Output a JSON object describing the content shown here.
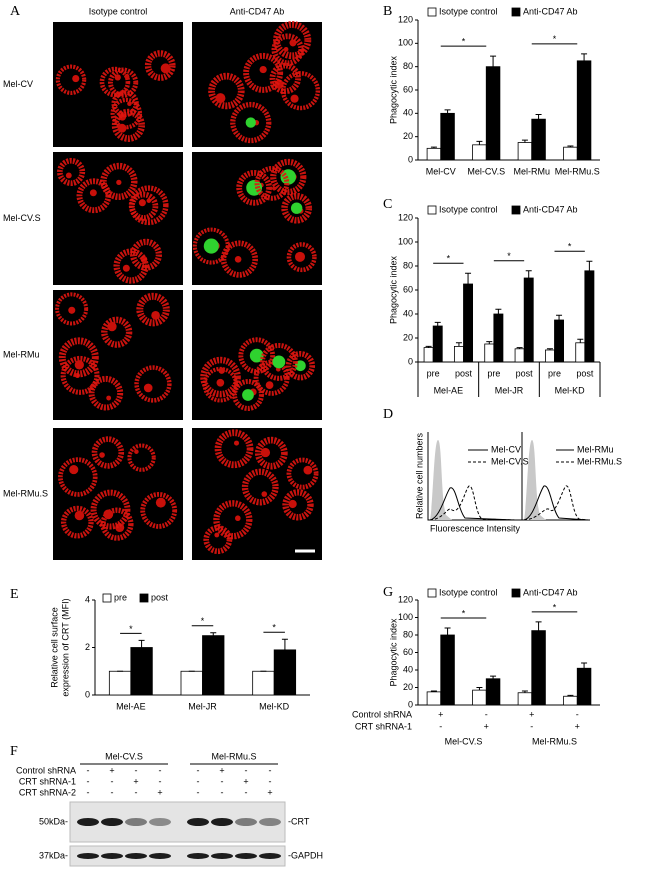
{
  "panel_labels": [
    "A",
    "B",
    "C",
    "D",
    "E",
    "F",
    "G"
  ],
  "panel_a": {
    "columns": [
      "Isotype control",
      "Anti-CD47 Ab"
    ],
    "rows": [
      "Mel-CV",
      "Mel-CV.S",
      "Mel-RMu",
      "Mel-RMu.S"
    ]
  },
  "chart_data": [
    {
      "type": "bar",
      "y_label": "Phagocytic index",
      "categories": [
        "Mel-CV",
        "Mel-CV.S",
        "Mel-RMu",
        "Mel-RMu.S"
      ],
      "series": [
        {
          "name": "Isotype control",
          "color": "#ffffff",
          "values": [
            10,
            13,
            15,
            11
          ],
          "errors": [
            1,
            3,
            2,
            1
          ]
        },
        {
          "name": "Anti-CD47 Ab",
          "color": "#000000",
          "values": [
            40,
            80,
            35,
            85
          ],
          "errors": [
            3,
            9,
            4,
            6
          ]
        }
      ],
      "ylim": [
        0,
        120
      ],
      "yticks": [
        0,
        20,
        40,
        60,
        80,
        100,
        120
      ],
      "significance": [
        "*",
        "*"
      ]
    },
    {
      "type": "bar",
      "y_label": "Phagocytic index",
      "categories": [
        "pre",
        "post",
        "pre",
        "post",
        "pre",
        "post"
      ],
      "groups": [
        "Mel-AE",
        "Mel-JR",
        "Mel-KD"
      ],
      "series": [
        {
          "name": "Isotype control",
          "color": "#ffffff",
          "values": [
            12,
            13,
            15,
            11,
            10,
            16
          ],
          "errors": [
            1,
            3,
            2,
            1,
            1,
            3
          ]
        },
        {
          "name": "Anti-CD47 Ab",
          "color": "#000000",
          "values": [
            30,
            65,
            40,
            70,
            35,
            76
          ],
          "errors": [
            3,
            9,
            4,
            6,
            4,
            8
          ]
        }
      ],
      "ylim": [
        0,
        120
      ],
      "yticks": [
        0,
        20,
        40,
        60,
        80,
        100,
        120
      ],
      "significance": [
        "*",
        "*",
        "*"
      ]
    },
    {
      "type": "bar",
      "y_label": [
        "Relative cell surface",
        "expression of CRT (MFI)"
      ],
      "categories": [
        "Mel-AE",
        "Mel-JR",
        "Mel-KD"
      ],
      "series": [
        {
          "name": "pre",
          "color": "#ffffff",
          "values": [
            1,
            1,
            1
          ],
          "errors": [
            0,
            0,
            0
          ]
        },
        {
          "name": "post",
          "color": "#000000",
          "values": [
            2,
            2.5,
            1.9
          ],
          "errors": [
            0.3,
            0.12,
            0.45
          ]
        }
      ],
      "ylim": [
        0,
        4
      ],
      "yticks": [
        0,
        2,
        4
      ],
      "significance": [
        "*",
        "*",
        "*"
      ]
    },
    {
      "type": "bar",
      "y_label": "Phagocytic index",
      "categories": [
        null,
        null,
        null,
        null
      ],
      "conditions": [
        {
          "name": "Control shRNA",
          "marks": [
            "+",
            "-",
            "+",
            "-"
          ]
        },
        {
          "name": "CRT shRNA-1",
          "marks": [
            "-",
            "+",
            "-",
            "+"
          ]
        }
      ],
      "groups": [
        "Mel-CV.S",
        "Mel-RMu.S"
      ],
      "series": [
        {
          "name": "Isotype control",
          "color": "#ffffff",
          "values": [
            15,
            17,
            14,
            10
          ],
          "errors": [
            1,
            3,
            2,
            1
          ]
        },
        {
          "name": "Anti-CD47 Ab",
          "color": "#000000",
          "values": [
            80,
            30,
            85,
            42
          ],
          "errors": [
            8,
            3,
            10,
            6
          ]
        }
      ],
      "ylim": [
        0,
        120
      ],
      "yticks": [
        0,
        20,
        40,
        60,
        80,
        100,
        120
      ],
      "significance": [
        "*",
        "*"
      ]
    }
  ],
  "panel_d": {
    "y_label": "Relative cell numbers",
    "x_label": "Fluorescence Intensity",
    "plots": [
      {
        "legend": [
          "Mel-CV",
          "Mel-CV.S"
        ]
      },
      {
        "legend": [
          "Mel-RMu",
          "Mel-RMu.S"
        ]
      }
    ]
  },
  "panel_f": {
    "groups": [
      "Mel-CV.S",
      "Mel-RMu.S"
    ],
    "conditions": [
      {
        "name": "Control shRNA",
        "marks": [
          "-",
          "+",
          "-",
          "-",
          "-",
          "+",
          "-",
          "-"
        ]
      },
      {
        "name": "CRT shRNA-1",
        "marks": [
          "-",
          "-",
          "+",
          "-",
          "-",
          "-",
          "+",
          "-"
        ]
      },
      {
        "name": "CRT shRNA-2",
        "marks": [
          "-",
          "-",
          "-",
          "+",
          "-",
          "-",
          "-",
          "+"
        ]
      }
    ],
    "blots": [
      {
        "marker": "50kDa-",
        "target": "-CRT"
      },
      {
        "marker": "37kDa-",
        "target": "-GAPDH"
      }
    ]
  }
}
